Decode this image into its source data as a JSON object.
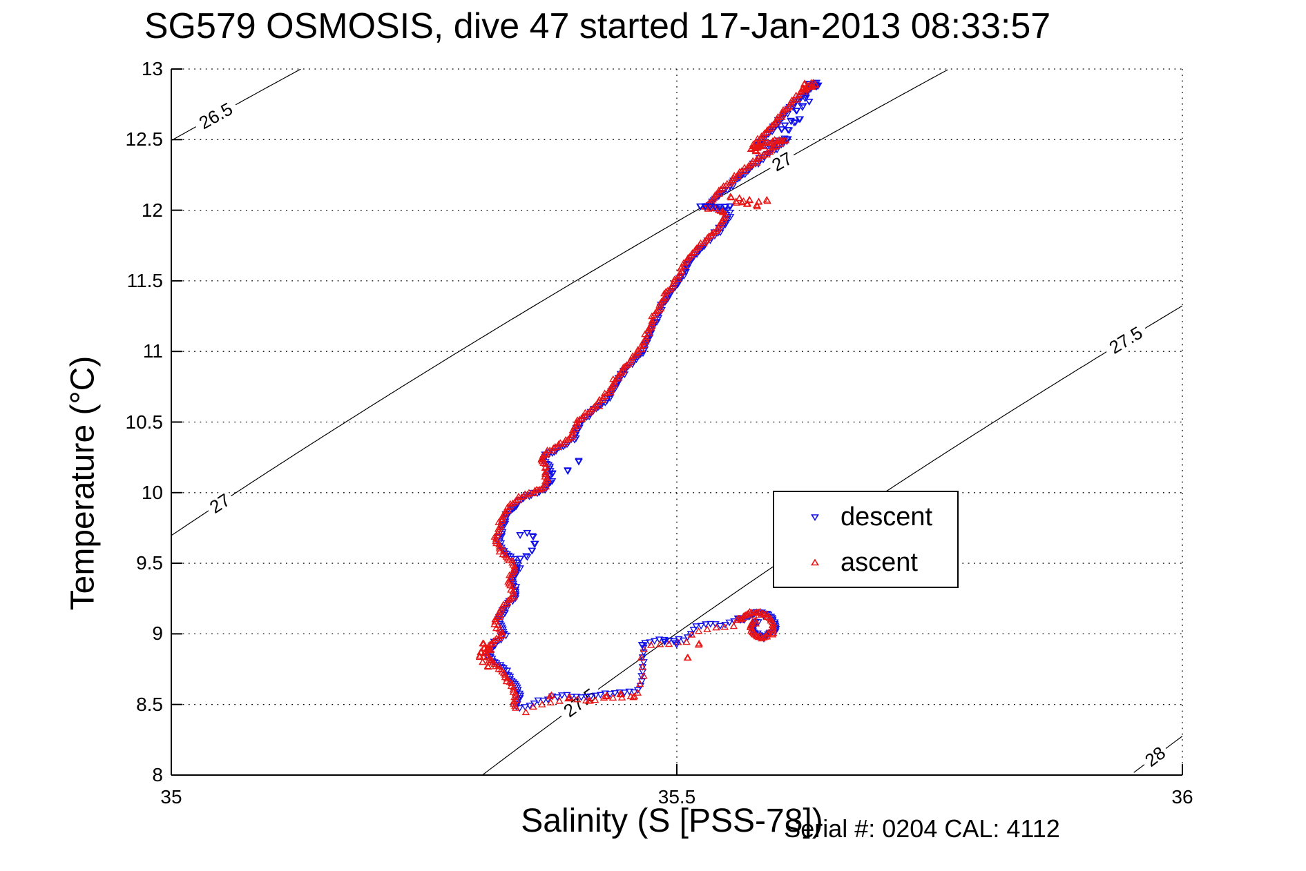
{
  "title": "SG579 OSMOSIS, dive 47 started 17-Jan-2013 08:33:57",
  "annotation": "Serial #: 0204  CAL: 4112",
  "chart_data": {
    "type": "scatter",
    "title": "SG579 OSMOSIS, dive 47 started 17-Jan-2013 08:33:57",
    "xlabel": "Salinity (S [PSS-78])",
    "ylabel": "Temperature (°C)",
    "xlim": [
      35,
      36
    ],
    "ylim": [
      8,
      13
    ],
    "xticks": [
      35,
      35.5,
      36
    ],
    "xtick_labels": [
      "35",
      "35.5",
      "36"
    ],
    "ytick_min": 8,
    "ytick_max": 13,
    "ytick_step": 0.5,
    "grid": "dotted",
    "legend_position": "middle-right",
    "annotation": "Serial #: 0204  CAL: 4112",
    "isopycnals": {
      "note": "sigma-theta density contours; sigma(S,T) = a + b*T + c*T^2 + beta*(S-35)",
      "a": 28.0467,
      "b": -0.053,
      "c": -0.0056667,
      "beta": 0.78,
      "levels": [
        26.5,
        27,
        27.5,
        28
      ],
      "labels": [
        {
          "level": 26.5,
          "s": 35.044
        },
        {
          "level": 27,
          "s": 35.048
        },
        {
          "level": 27,
          "s": 35.604
        },
        {
          "level": 27.5,
          "s": 35.404
        },
        {
          "level": 27.5,
          "s": 35.944
        },
        {
          "level": 28,
          "s": 35.973
        }
      ]
    },
    "series": [
      {
        "name": "descent",
        "color": "#0f0fe8",
        "marker": "triangle-down"
      },
      {
        "name": "ascent",
        "color": "#e81414",
        "marker": "triangle-up"
      }
    ],
    "main_profile": [
      [
        35.637,
        12.9
      ],
      [
        35.629,
        12.855
      ],
      [
        35.622,
        12.81
      ],
      [
        35.614,
        12.755
      ],
      [
        35.607,
        12.7
      ],
      [
        35.601,
        12.645
      ],
      [
        35.597,
        12.6
      ],
      [
        35.591,
        12.555
      ],
      [
        35.584,
        12.51
      ],
      [
        35.579,
        12.47
      ],
      [
        35.578,
        12.44
      ],
      [
        35.589,
        12.47
      ],
      [
        35.601,
        12.49
      ],
      [
        35.609,
        12.5
      ],
      [
        35.6,
        12.455
      ],
      [
        35.591,
        12.41
      ],
      [
        35.582,
        12.365
      ],
      [
        35.572,
        12.31
      ],
      [
        35.562,
        12.25
      ],
      [
        35.553,
        12.19
      ],
      [
        35.544,
        12.13
      ],
      [
        35.536,
        12.07
      ],
      [
        35.529,
        12.025
      ],
      [
        35.541,
        12.01
      ],
      [
        35.549,
        11.985
      ],
      [
        35.549,
        11.94
      ],
      [
        35.544,
        11.89
      ],
      [
        35.537,
        11.84
      ],
      [
        35.529,
        11.78
      ],
      [
        35.521,
        11.72
      ],
      [
        35.513,
        11.66
      ],
      [
        35.508,
        11.6
      ],
      [
        35.504,
        11.54
      ],
      [
        35.498,
        11.475
      ],
      [
        35.492,
        11.415
      ],
      [
        35.487,
        11.35
      ],
      [
        35.482,
        11.285
      ],
      [
        35.478,
        11.22
      ],
      [
        35.474,
        11.16
      ],
      [
        35.471,
        11.1
      ],
      [
        35.467,
        11.04
      ],
      [
        35.462,
        10.98
      ],
      [
        35.455,
        10.925
      ],
      [
        35.448,
        10.87
      ],
      [
        35.442,
        10.815
      ],
      [
        35.438,
        10.76
      ],
      [
        35.434,
        10.705
      ],
      [
        35.427,
        10.65
      ],
      [
        35.419,
        10.6
      ],
      [
        35.411,
        10.55
      ],
      [
        35.404,
        10.5
      ],
      [
        35.4,
        10.45
      ],
      [
        35.398,
        10.4
      ],
      [
        35.391,
        10.355
      ],
      [
        35.381,
        10.315
      ],
      [
        35.371,
        10.275
      ],
      [
        35.366,
        10.23
      ],
      [
        35.373,
        10.185
      ],
      [
        35.371,
        10.14
      ],
      [
        35.374,
        10.09
      ],
      [
        35.37,
        10.04
      ],
      [
        35.36,
        10.0
      ],
      [
        35.349,
        9.97
      ],
      [
        35.341,
        9.93
      ],
      [
        35.335,
        9.885
      ],
      [
        35.33,
        9.84
      ],
      [
        35.328,
        9.785
      ],
      [
        35.325,
        9.73
      ],
      [
        35.322,
        9.67
      ],
      [
        35.325,
        9.61
      ],
      [
        35.332,
        9.56
      ],
      [
        35.339,
        9.51
      ],
      [
        35.342,
        9.46
      ],
      [
        35.338,
        9.415
      ],
      [
        35.335,
        9.37
      ],
      [
        35.338,
        9.325
      ],
      [
        35.34,
        9.28
      ],
      [
        35.335,
        9.235
      ],
      [
        35.329,
        9.19
      ],
      [
        35.327,
        9.14
      ],
      [
        35.322,
        9.09
      ],
      [
        35.325,
        9.04
      ],
      [
        35.329,
        8.995
      ],
      [
        35.321,
        8.95
      ],
      [
        35.314,
        8.9
      ],
      [
        35.312,
        8.85
      ],
      [
        35.318,
        8.8
      ],
      [
        35.326,
        8.755
      ],
      [
        35.332,
        8.71
      ],
      [
        35.336,
        8.66
      ],
      [
        35.34,
        8.61
      ],
      [
        35.343,
        8.56
      ],
      [
        35.341,
        8.51
      ],
      [
        35.342,
        8.46
      ]
    ],
    "deep_trail": [
      [
        35.35,
        8.47
      ],
      [
        35.36,
        8.5
      ],
      [
        35.372,
        8.53
      ],
      [
        35.387,
        8.55
      ],
      [
        35.403,
        8.54
      ],
      [
        35.419,
        8.55
      ],
      [
        35.434,
        8.565
      ],
      [
        35.448,
        8.575
      ],
      [
        35.461,
        8.58
      ],
      [
        35.467,
        8.7
      ],
      [
        35.466,
        8.81
      ],
      [
        35.468,
        8.92
      ],
      [
        35.48,
        8.94
      ],
      [
        35.492,
        8.945
      ],
      [
        35.503,
        8.94
      ],
      [
        35.512,
        8.97
      ],
      [
        35.516,
        9.03
      ],
      [
        35.526,
        9.05
      ],
      [
        35.536,
        9.055
      ],
      [
        35.544,
        9.05
      ],
      [
        35.551,
        9.07
      ],
      [
        35.559,
        9.085
      ],
      [
        35.566,
        9.105
      ]
    ],
    "deep_hook": [
      [
        35.56,
        9.1
      ],
      [
        35.566,
        9.12
      ],
      [
        35.572,
        9.14
      ],
      [
        35.579,
        9.15
      ],
      [
        35.586,
        9.145
      ],
      [
        35.592,
        9.125
      ],
      [
        35.595,
        9.095
      ],
      [
        35.596,
        9.06
      ],
      [
        35.596,
        9.025
      ],
      [
        35.592,
        8.995
      ],
      [
        35.586,
        8.975
      ],
      [
        35.58,
        8.98
      ],
      [
        35.576,
        9.005
      ],
      [
        35.574,
        9.04
      ],
      [
        35.576,
        9.07
      ],
      [
        35.58,
        9.095
      ]
    ],
    "extras": {
      "descent": [
        [
          35.628,
          12.8
        ],
        [
          35.631,
          12.77
        ],
        [
          35.625,
          12.74
        ],
        [
          35.618,
          12.705
        ],
        [
          35.613,
          12.63
        ],
        [
          35.607,
          12.6
        ],
        [
          35.616,
          12.62
        ],
        [
          35.621,
          12.645
        ],
        [
          35.61,
          12.57
        ],
        [
          35.604,
          12.575
        ],
        [
          35.523,
          12.028
        ],
        [
          35.528,
          12.025
        ],
        [
          35.533,
          12.027
        ],
        [
          35.538,
          12.024
        ],
        [
          35.543,
          12.027
        ],
        [
          35.548,
          12.025
        ],
        [
          35.552,
          12.028
        ],
        [
          35.345,
          9.7
        ],
        [
          35.352,
          9.715
        ],
        [
          35.358,
          9.688
        ],
        [
          35.36,
          9.64
        ],
        [
          35.357,
          9.59
        ],
        [
          35.351,
          9.553
        ],
        [
          35.345,
          9.533
        ],
        [
          35.466,
          8.92
        ],
        [
          35.488,
          8.945
        ],
        [
          35.499,
          8.935
        ],
        [
          35.403,
          10.22
        ],
        [
          35.392,
          10.16
        ],
        [
          35.377,
          10.135
        ],
        [
          35.63,
          12.895
        ],
        [
          35.635,
          12.885
        ],
        [
          35.638,
          12.875
        ],
        [
          35.632,
          12.87
        ],
        [
          35.636,
          12.896
        ],
        [
          35.64,
          12.885
        ]
      ],
      "ascent": [
        [
          35.553,
          12.095
        ],
        [
          35.562,
          12.085
        ],
        [
          35.572,
          12.07
        ],
        [
          35.581,
          12.06
        ],
        [
          35.589,
          12.073
        ],
        [
          35.57,
          12.046
        ],
        [
          35.559,
          12.052
        ],
        [
          35.579,
          12.036
        ],
        [
          35.566,
          12.063
        ],
        [
          35.626,
          12.89
        ],
        [
          35.63,
          12.88
        ],
        [
          35.634,
          12.892
        ],
        [
          35.628,
          12.868
        ],
        [
          35.633,
          12.876
        ],
        [
          35.637,
          12.89
        ],
        [
          35.624,
          12.858
        ],
        [
          35.576,
          12.455
        ],
        [
          35.58,
          12.44
        ],
        [
          35.578,
          12.424
        ],
        [
          35.582,
          12.452
        ],
        [
          35.574,
          12.438
        ],
        [
          35.309,
          8.9
        ],
        [
          35.306,
          8.87
        ],
        [
          35.305,
          8.835
        ],
        [
          35.308,
          8.8
        ],
        [
          35.313,
          8.77
        ],
        [
          35.316,
          8.81
        ],
        [
          35.312,
          8.86
        ],
        [
          35.309,
          8.93
        ],
        [
          35.316,
          8.885
        ],
        [
          35.511,
          8.83
        ],
        [
          35.522,
          8.93
        ],
        [
          35.376,
          8.565
        ],
        [
          35.394,
          8.55
        ],
        [
          35.414,
          8.525
        ],
        [
          35.445,
          8.57
        ],
        [
          35.458,
          8.555
        ],
        [
          35.43,
          8.555
        ]
      ]
    }
  }
}
